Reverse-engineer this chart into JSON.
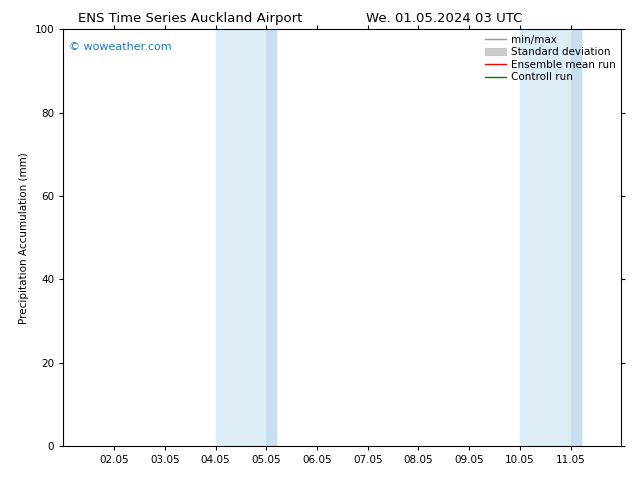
{
  "title_left": "ENS Time Series Auckland Airport",
  "title_right": "We. 01.05.2024 03 UTC",
  "ylabel": "Precipitation Accumulation (mm)",
  "ylim": [
    0,
    100
  ],
  "yticks": [
    0,
    20,
    40,
    60,
    80,
    100
  ],
  "x_tick_labels": [
    "02.05",
    "03.05",
    "04.05",
    "05.05",
    "06.05",
    "07.05",
    "08.05",
    "09.05",
    "10.05",
    "11.05"
  ],
  "x_tick_positions": [
    2,
    3,
    4,
    5,
    6,
    7,
    8,
    9,
    10,
    11
  ],
  "xlim": [
    1.0,
    12.0
  ],
  "shaded_regions": [
    {
      "x_start": 4.0,
      "x_end": 5.2,
      "color": "#ddeef8",
      "alpha": 1.0
    },
    {
      "x_start": 10.0,
      "x_end": 11.2,
      "color": "#ddeef8",
      "alpha": 1.0
    }
  ],
  "inner_shaded_regions": [
    {
      "x_start": 5.0,
      "x_end": 5.2,
      "color": "#c8dff0",
      "alpha": 1.0
    },
    {
      "x_start": 11.0,
      "x_end": 11.2,
      "color": "#c8dff0",
      "alpha": 1.0
    }
  ],
  "watermark_text": "© woweather.com",
  "watermark_color": "#1a7abf",
  "legend_entries": [
    {
      "label": "min/max",
      "color": "#999999",
      "linestyle": "-",
      "linewidth": 1.0
    },
    {
      "label": "Standard deviation",
      "color": "#cccccc",
      "linestyle": "-",
      "linewidth": 4
    },
    {
      "label": "Ensemble mean run",
      "color": "red",
      "linestyle": "-",
      "linewidth": 1.0
    },
    {
      "label": "Controll run",
      "color": "green",
      "linestyle": "-",
      "linewidth": 1.0
    }
  ],
  "background_color": "#ffffff",
  "plot_bg_color": "#ffffff",
  "font_size": 7.5,
  "title_font_size": 9.5
}
